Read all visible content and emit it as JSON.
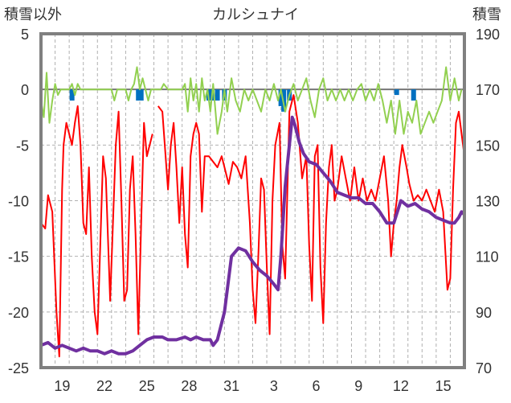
{
  "chart_data": {
    "type": "line",
    "title": "カルシュナイ",
    "ylabel_left": "積雪以外",
    "ylabel_right": "積雪",
    "ylim_left": [
      -25,
      5
    ],
    "ylim_right": [
      70,
      190
    ],
    "yticks_left": [
      5,
      0,
      -5,
      -10,
      -15,
      -20,
      -25
    ],
    "yticks_right": [
      190,
      170,
      150,
      130,
      110,
      90,
      70
    ],
    "xlim": [
      0,
      30
    ],
    "xticks": [
      {
        "x": 1.5,
        "label": "19"
      },
      {
        "x": 4.5,
        "label": "22"
      },
      {
        "x": 7.5,
        "label": "25"
      },
      {
        "x": 10.5,
        "label": "28"
      },
      {
        "x": 13.5,
        "label": "31"
      },
      {
        "x": 16.5,
        "label": "3"
      },
      {
        "x": 19.5,
        "label": "6"
      },
      {
        "x": 22.5,
        "label": "9"
      },
      {
        "x": 25.5,
        "label": "12"
      },
      {
        "x": 28.5,
        "label": "15"
      }
    ],
    "grid": true,
    "colors": {
      "temperature": "#ff0000",
      "wind": "#92d050",
      "precipitation": "#0070c0",
      "snow_depth": "#7030a0",
      "frame": "#808080"
    },
    "series": [
      {
        "axis": "left",
        "style": "line",
        "color": "#ff0000",
        "points": [
          [
            0,
            -12
          ],
          [
            0.3,
            -12.5
          ],
          [
            0.5,
            -9.5
          ],
          [
            0.8,
            -11
          ],
          [
            1.1,
            -20
          ],
          [
            1.3,
            -24
          ],
          [
            1.5,
            -9
          ],
          [
            1.6,
            -5
          ],
          [
            1.8,
            -3
          ],
          [
            2.0,
            -4
          ],
          [
            2.2,
            -5
          ],
          [
            2.4,
            -3
          ],
          [
            2.6,
            -1.5
          ],
          [
            2.8,
            -5
          ],
          [
            3.0,
            -12
          ],
          [
            3.2,
            -13
          ],
          [
            3.4,
            -7
          ],
          [
            3.6,
            -15
          ],
          [
            3.8,
            -20
          ],
          [
            4.0,
            -22
          ],
          [
            4.2,
            -14
          ],
          [
            4.4,
            -6
          ],
          [
            4.6,
            -8
          ],
          [
            4.9,
            -19
          ],
          [
            5.1,
            -12
          ],
          [
            5.3,
            -5
          ],
          [
            5.5,
            -2
          ],
          [
            5.7,
            -10
          ],
          [
            5.9,
            -19
          ],
          [
            6.1,
            -18
          ],
          [
            6.3,
            -9
          ],
          [
            6.5,
            -6
          ],
          [
            6.7,
            -13
          ],
          [
            6.9,
            -22
          ],
          [
            7.1,
            -12
          ],
          [
            7.3,
            -3
          ],
          [
            7.5,
            -6
          ],
          [
            7.7,
            -5
          ],
          [
            7.9,
            -4
          ]
        ]
      },
      {
        "axis": "left",
        "style": "line",
        "color": "#ff0000",
        "points": [
          [
            8.3,
            -1.5
          ],
          [
            8.6,
            -2
          ],
          [
            9.0,
            -9
          ],
          [
            9.2,
            -5
          ],
          [
            9.4,
            -3
          ],
          [
            9.6,
            -7
          ],
          [
            9.8,
            -12
          ],
          [
            10.0,
            -7
          ],
          [
            10.2,
            -13
          ],
          [
            10.4,
            -16
          ],
          [
            10.6,
            -6
          ],
          [
            10.8,
            -4
          ],
          [
            11.0,
            -3
          ],
          [
            11.2,
            -4
          ],
          [
            11.4,
            -11
          ],
          [
            11.6,
            -6
          ],
          [
            11.9,
            -6
          ],
          [
            12.2,
            -6.5
          ],
          [
            12.5,
            -7
          ],
          [
            12.8,
            -6
          ],
          [
            13.0,
            -7
          ],
          [
            13.3,
            -8.5
          ],
          [
            13.6,
            -6.5
          ],
          [
            13.9,
            -7
          ],
          [
            14.2,
            -8
          ],
          [
            14.5,
            -6
          ],
          [
            14.8,
            -12
          ],
          [
            15.0,
            -18
          ],
          [
            15.2,
            -21
          ],
          [
            15.4,
            -15
          ],
          [
            15.6,
            -8
          ],
          [
            15.8,
            -9
          ],
          [
            16.0,
            -16
          ],
          [
            16.2,
            -22
          ],
          [
            16.4,
            -10
          ],
          [
            16.6,
            -5
          ],
          [
            16.9,
            -3
          ],
          [
            17.1,
            -14
          ],
          [
            17.3,
            -17
          ],
          [
            17.6,
            -2
          ],
          [
            17.9,
            -0.5
          ],
          [
            18.2,
            -3
          ],
          [
            18.5,
            -8
          ],
          [
            18.8,
            -6
          ],
          [
            19.0,
            -14
          ],
          [
            19.2,
            -19
          ],
          [
            19.4,
            -6
          ],
          [
            19.6,
            -5
          ],
          [
            19.8,
            -16
          ],
          [
            20.0,
            -21
          ],
          [
            20.2,
            -12
          ],
          [
            20.4,
            -7
          ],
          [
            20.6,
            -5
          ],
          [
            20.8,
            -10
          ],
          [
            21.0,
            -9
          ],
          [
            21.3,
            -6
          ],
          [
            21.6,
            -8
          ],
          [
            21.9,
            -10
          ],
          [
            22.2,
            -7
          ],
          [
            22.5,
            -10
          ],
          [
            22.8,
            -8
          ],
          [
            23.1,
            -10
          ],
          [
            23.4,
            -9
          ],
          [
            23.7,
            -10
          ],
          [
            24.0,
            -8
          ],
          [
            24.3,
            -6
          ],
          [
            24.6,
            -10
          ],
          [
            24.8,
            -15
          ],
          [
            25.0,
            -12
          ],
          [
            25.2,
            -10
          ],
          [
            25.4,
            -7
          ],
          [
            25.6,
            -5
          ],
          [
            25.9,
            -7
          ],
          [
            26.1,
            -8.5
          ],
          [
            26.4,
            -10
          ],
          [
            26.7,
            -9.5
          ],
          [
            27.0,
            -10
          ],
          [
            27.3,
            -9
          ],
          [
            27.6,
            -10
          ],
          [
            27.9,
            -11
          ],
          [
            28.2,
            -9
          ],
          [
            28.5,
            -11
          ],
          [
            28.8,
            -18
          ],
          [
            29.0,
            -17
          ],
          [
            29.2,
            -9
          ],
          [
            29.4,
            -3
          ],
          [
            29.6,
            -2
          ],
          [
            29.8,
            -4
          ],
          [
            30.0,
            -6
          ]
        ]
      },
      {
        "axis": "left",
        "style": "bars",
        "color": "#0070c0",
        "points": [
          [
            2.2,
            -1
          ],
          [
            6.9,
            -1
          ],
          [
            7.1,
            -1
          ],
          [
            11.9,
            -1
          ],
          [
            12.1,
            -1
          ],
          [
            12.5,
            -1
          ],
          [
            13.0,
            -1
          ],
          [
            17.0,
            -1.5
          ],
          [
            17.2,
            -2
          ],
          [
            17.6,
            -1
          ],
          [
            25.2,
            -0.5
          ],
          [
            26.4,
            -1
          ]
        ]
      },
      {
        "axis": "left",
        "style": "line",
        "color": "#92d050",
        "points": [
          [
            0,
            -1
          ],
          [
            0.2,
            -2.5
          ],
          [
            0.4,
            1.5
          ],
          [
            0.6,
            -3
          ],
          [
            0.8,
            -1
          ],
          [
            1.0,
            0.5
          ],
          [
            1.2,
            -0.5
          ],
          [
            1.4,
            0
          ],
          [
            2.0,
            0
          ],
          [
            2.2,
            0.5
          ],
          [
            2.4,
            -0.5
          ],
          [
            2.6,
            0.5
          ],
          [
            2.8,
            0
          ],
          [
            5.0,
            0
          ],
          [
            5.2,
            -1
          ],
          [
            5.4,
            0
          ],
          [
            6.0,
            0
          ],
          [
            6.2,
            -1
          ],
          [
            6.4,
            0
          ],
          [
            6.6,
            0.5
          ],
          [
            6.8,
            2
          ],
          [
            7.0,
            0
          ],
          [
            7.2,
            1
          ],
          [
            7.4,
            0
          ],
          [
            7.6,
            -1
          ],
          [
            7.8,
            0
          ],
          [
            8.5,
            0
          ],
          [
            8.7,
            0.5
          ],
          [
            9.0,
            0
          ],
          [
            10.0,
            0
          ],
          [
            10.2,
            0.5
          ],
          [
            10.4,
            -2
          ],
          [
            10.6,
            1
          ],
          [
            10.8,
            -1
          ],
          [
            11.0,
            0.5
          ],
          [
            11.2,
            -2
          ],
          [
            11.4,
            1
          ],
          [
            11.6,
            -1
          ],
          [
            11.8,
            0
          ],
          [
            12.0,
            -2
          ],
          [
            12.2,
            0.5
          ],
          [
            12.5,
            -4
          ],
          [
            12.8,
            -2
          ],
          [
            13.0,
            0
          ],
          [
            13.2,
            -2
          ],
          [
            13.5,
            1
          ],
          [
            13.8,
            -1
          ],
          [
            14.1,
            -2
          ],
          [
            14.4,
            0
          ],
          [
            14.7,
            -1
          ],
          [
            15.0,
            0
          ],
          [
            15.3,
            -1
          ],
          [
            15.6,
            -2
          ],
          [
            15.9,
            0
          ],
          [
            16.2,
            -1
          ],
          [
            16.5,
            0.5
          ],
          [
            16.8,
            -1
          ],
          [
            17.0,
            0
          ],
          [
            17.3,
            -2
          ],
          [
            17.6,
            -0.5
          ],
          [
            17.9,
            0.5
          ],
          [
            18.2,
            -1
          ],
          [
            18.5,
            0
          ],
          [
            18.8,
            1
          ],
          [
            19.1,
            -1
          ],
          [
            19.4,
            -2.5
          ],
          [
            19.7,
            0
          ],
          [
            20.0,
            1
          ],
          [
            20.3,
            -1
          ],
          [
            20.6,
            0
          ],
          [
            20.9,
            -1
          ],
          [
            21.2,
            0
          ],
          [
            21.5,
            -1
          ],
          [
            21.8,
            0
          ],
          [
            22.1,
            -1
          ],
          [
            22.4,
            0
          ],
          [
            22.7,
            0.5
          ],
          [
            23.0,
            -1
          ],
          [
            23.3,
            0
          ],
          [
            23.6,
            -1
          ],
          [
            23.9,
            0.5
          ],
          [
            24.2,
            -1
          ],
          [
            24.5,
            -3
          ],
          [
            24.8,
            -1
          ],
          [
            25.1,
            -4
          ],
          [
            25.4,
            -1
          ],
          [
            25.7,
            -4
          ],
          [
            26.0,
            -2
          ],
          [
            26.3,
            -3
          ],
          [
            26.6,
            -1
          ],
          [
            26.9,
            -4
          ],
          [
            27.2,
            -3
          ],
          [
            27.5,
            -2
          ],
          [
            27.8,
            -3
          ],
          [
            28.1,
            -2
          ],
          [
            28.4,
            -1
          ],
          [
            28.7,
            2
          ],
          [
            29.0,
            -1
          ],
          [
            29.3,
            1
          ],
          [
            29.6,
            -1
          ],
          [
            29.8,
            0
          ]
        ]
      },
      {
        "axis": "right",
        "style": "thick-line",
        "color": "#7030a0",
        "points": [
          [
            0,
            78
          ],
          [
            0.5,
            79
          ],
          [
            1.0,
            77
          ],
          [
            1.5,
            78
          ],
          [
            2.0,
            77
          ],
          [
            2.5,
            76
          ],
          [
            3.0,
            77
          ],
          [
            3.5,
            76
          ],
          [
            4.0,
            76
          ],
          [
            4.5,
            75
          ],
          [
            5.0,
            76
          ],
          [
            5.5,
            75
          ],
          [
            6.0,
            75
          ],
          [
            6.5,
            76
          ],
          [
            7.0,
            78
          ],
          [
            7.5,
            80
          ],
          [
            8.0,
            81
          ],
          [
            8.6,
            81
          ],
          [
            9.0,
            80
          ],
          [
            9.6,
            80
          ],
          [
            10.2,
            81
          ],
          [
            10.6,
            80
          ],
          [
            11.0,
            81
          ],
          [
            11.5,
            80
          ],
          [
            12.0,
            80
          ],
          [
            12.2,
            78
          ],
          [
            12.5,
            80
          ],
          [
            13.0,
            90
          ],
          [
            13.5,
            110
          ],
          [
            14.0,
            113
          ],
          [
            14.5,
            112
          ],
          [
            15.0,
            108
          ],
          [
            15.5,
            105
          ],
          [
            16.0,
            103
          ],
          [
            16.5,
            100
          ],
          [
            16.8,
            98
          ],
          [
            17.0,
            110
          ],
          [
            17.3,
            135
          ],
          [
            17.5,
            145
          ],
          [
            17.8,
            160
          ],
          [
            18.0,
            157
          ],
          [
            18.3,
            151
          ],
          [
            18.6,
            147
          ],
          [
            19.0,
            144
          ],
          [
            19.5,
            143
          ],
          [
            20.0,
            140
          ],
          [
            20.5,
            137
          ],
          [
            21.0,
            133
          ],
          [
            21.5,
            132
          ],
          [
            22.0,
            131
          ],
          [
            22.5,
            131
          ],
          [
            23.0,
            129
          ],
          [
            23.5,
            129
          ],
          [
            24.0,
            126
          ],
          [
            24.5,
            122
          ],
          [
            25.0,
            122
          ],
          [
            25.5,
            130
          ],
          [
            26.0,
            128
          ],
          [
            26.5,
            129
          ],
          [
            27.0,
            127
          ],
          [
            27.5,
            126
          ],
          [
            28.0,
            124
          ],
          [
            28.5,
            123
          ],
          [
            29.0,
            122
          ],
          [
            29.3,
            122
          ],
          [
            29.6,
            124
          ],
          [
            29.8,
            126
          ],
          [
            30.0,
            125
          ]
        ]
      }
    ]
  }
}
